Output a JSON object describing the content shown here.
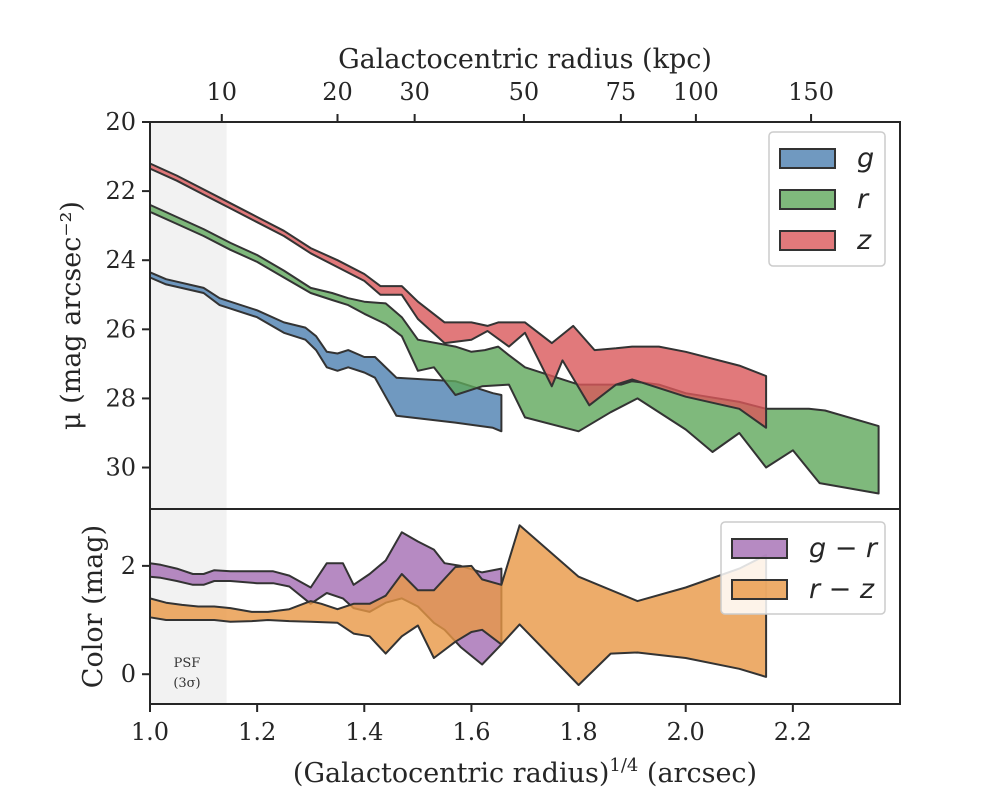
{
  "chart_data": [
    {
      "panel": "surface-brightness",
      "type": "area",
      "ylabel": "μ (mag arcsec⁻²)",
      "ylim": [
        31.2,
        20.0
      ],
      "y_inverted": true,
      "yticks": [
        20,
        22,
        24,
        26,
        28,
        30
      ],
      "top_xlabel": "Galactocentric radius (kpc)",
      "top_xticks": [
        {
          "label": "10",
          "x": 1.134
        },
        {
          "label": "20",
          "x": 1.35
        },
        {
          "label": "30",
          "x": 1.494
        },
        {
          "label": "50",
          "x": 1.698
        },
        {
          "label": "75",
          "x": 1.879
        },
        {
          "label": "100",
          "x": 2.019
        },
        {
          "label": "150",
          "x": 2.234
        }
      ],
      "psf_band": {
        "x0": 1.0,
        "x1": 1.143
      },
      "legend": {
        "location": "top-right",
        "entries": [
          "g",
          "r",
          "z"
        ]
      },
      "series": [
        {
          "name": "g",
          "color": "#4c7fb0",
          "upper": [
            [
              1.0,
              24.35
            ],
            [
              1.03,
              24.55
            ],
            [
              1.1,
              24.8
            ],
            [
              1.13,
              25.1
            ],
            [
              1.2,
              25.45
            ],
            [
              1.25,
              25.8
            ],
            [
              1.29,
              25.95
            ],
            [
              1.31,
              26.2
            ],
            [
              1.33,
              26.65
            ],
            [
              1.35,
              26.7
            ],
            [
              1.37,
              26.6
            ],
            [
              1.4,
              26.8
            ],
            [
              1.42,
              26.8
            ],
            [
              1.46,
              27.4
            ],
            [
              1.57,
              27.5
            ],
            [
              1.64,
              27.85
            ],
            [
              1.656,
              27.9
            ]
          ],
          "lower": [
            [
              1.0,
              24.5
            ],
            [
              1.03,
              24.7
            ],
            [
              1.1,
              24.95
            ],
            [
              1.13,
              25.3
            ],
            [
              1.2,
              25.65
            ],
            [
              1.25,
              26.1
            ],
            [
              1.29,
              26.3
            ],
            [
              1.31,
              26.6
            ],
            [
              1.33,
              27.1
            ],
            [
              1.35,
              27.2
            ],
            [
              1.37,
              27.1
            ],
            [
              1.4,
              27.25
            ],
            [
              1.42,
              27.4
            ],
            [
              1.46,
              28.5
            ],
            [
              1.57,
              28.7
            ],
            [
              1.64,
              28.85
            ],
            [
              1.656,
              28.95
            ]
          ]
        },
        {
          "name": "r",
          "color": "#5fa85b",
          "upper": [
            [
              1.0,
              22.4
            ],
            [
              1.05,
              22.75
            ],
            [
              1.1,
              23.1
            ],
            [
              1.15,
              23.5
            ],
            [
              1.2,
              23.85
            ],
            [
              1.25,
              24.3
            ],
            [
              1.3,
              24.8
            ],
            [
              1.34,
              24.95
            ],
            [
              1.37,
              25.1
            ],
            [
              1.4,
              25.2
            ],
            [
              1.44,
              25.25
            ],
            [
              1.47,
              25.65
            ],
            [
              1.5,
              26.3
            ],
            [
              1.57,
              26.5
            ],
            [
              1.6,
              26.65
            ],
            [
              1.625,
              26.6
            ],
            [
              1.65,
              26.5
            ],
            [
              1.67,
              26.75
            ],
            [
              1.7,
              27.1
            ],
            [
              1.8,
              27.6
            ],
            [
              1.88,
              27.6
            ],
            [
              1.9,
              27.5
            ],
            [
              1.95,
              27.6
            ],
            [
              2.0,
              27.85
            ],
            [
              2.1,
              28.1
            ],
            [
              2.15,
              28.3
            ],
            [
              2.23,
              28.3
            ],
            [
              2.26,
              28.35
            ],
            [
              2.36,
              28.8
            ]
          ],
          "lower": [
            [
              1.0,
              22.6
            ],
            [
              1.05,
              22.95
            ],
            [
              1.1,
              23.3
            ],
            [
              1.15,
              23.7
            ],
            [
              1.2,
              24.05
            ],
            [
              1.25,
              24.5
            ],
            [
              1.3,
              24.95
            ],
            [
              1.34,
              25.15
            ],
            [
              1.37,
              25.3
            ],
            [
              1.4,
              25.55
            ],
            [
              1.44,
              25.85
            ],
            [
              1.47,
              26.2
            ],
            [
              1.5,
              27.2
            ],
            [
              1.53,
              27.1
            ],
            [
              1.57,
              27.9
            ],
            [
              1.62,
              27.65
            ],
            [
              1.67,
              27.6
            ],
            [
              1.7,
              28.55
            ],
            [
              1.8,
              28.95
            ],
            [
              1.86,
              28.4
            ],
            [
              1.91,
              28.0
            ],
            [
              2.0,
              28.9
            ],
            [
              2.05,
              29.55
            ],
            [
              2.1,
              29.0
            ],
            [
              2.15,
              30.0
            ],
            [
              2.2,
              29.5
            ],
            [
              2.25,
              30.45
            ],
            [
              2.36,
              30.75
            ]
          ]
        },
        {
          "name": "z",
          "color": "#d9575a",
          "upper": [
            [
              1.0,
              21.2
            ],
            [
              1.05,
              21.55
            ],
            [
              1.1,
              21.95
            ],
            [
              1.15,
              22.35
            ],
            [
              1.2,
              22.75
            ],
            [
              1.25,
              23.15
            ],
            [
              1.3,
              23.65
            ],
            [
              1.35,
              24.0
            ],
            [
              1.4,
              24.4
            ],
            [
              1.43,
              24.75
            ],
            [
              1.47,
              24.75
            ],
            [
              1.5,
              25.2
            ],
            [
              1.55,
              25.8
            ],
            [
              1.6,
              25.8
            ],
            [
              1.63,
              25.9
            ],
            [
              1.65,
              25.8
            ],
            [
              1.7,
              25.8
            ],
            [
              1.75,
              26.4
            ],
            [
              1.79,
              25.9
            ],
            [
              1.83,
              26.6
            ],
            [
              1.87,
              26.55
            ],
            [
              1.9,
              26.5
            ],
            [
              1.95,
              26.5
            ],
            [
              2.0,
              26.65
            ],
            [
              2.1,
              27.05
            ],
            [
              2.15,
              27.35
            ]
          ],
          "lower": [
            [
              1.0,
              21.35
            ],
            [
              1.05,
              21.7
            ],
            [
              1.1,
              22.1
            ],
            [
              1.15,
              22.5
            ],
            [
              1.2,
              22.9
            ],
            [
              1.25,
              23.3
            ],
            [
              1.3,
              23.8
            ],
            [
              1.35,
              24.2
            ],
            [
              1.4,
              24.6
            ],
            [
              1.43,
              25.0
            ],
            [
              1.47,
              25.0
            ],
            [
              1.5,
              25.7
            ],
            [
              1.55,
              26.4
            ],
            [
              1.6,
              26.3
            ],
            [
              1.63,
              26.05
            ],
            [
              1.67,
              26.5
            ],
            [
              1.7,
              26.1
            ],
            [
              1.75,
              27.65
            ],
            [
              1.77,
              26.9
            ],
            [
              1.82,
              28.2
            ],
            [
              1.87,
              27.6
            ],
            [
              1.9,
              27.45
            ],
            [
              2.0,
              27.95
            ],
            [
              2.1,
              28.3
            ],
            [
              2.15,
              28.85
            ]
          ]
        }
      ]
    },
    {
      "panel": "color",
      "type": "area",
      "xlabel": "(Galactocentric radius)^1/4 (arcsec)",
      "ylabel": "Color (mag)",
      "xlim": [
        1.0,
        2.4
      ],
      "ylim": [
        -0.55,
        3.05
      ],
      "xticks": [
        1.0,
        1.2,
        1.4,
        1.6,
        1.8,
        2.0,
        2.2
      ],
      "yticks": [
        0,
        2
      ],
      "psf_band": {
        "x0": 1.0,
        "x1": 1.143
      },
      "legend": {
        "location": "top-right",
        "entries": [
          "g − r",
          "r − z"
        ]
      },
      "series": [
        {
          "name": "g − r",
          "color": "#a46db3",
          "upper": [
            [
              1.0,
              2.05
            ],
            [
              1.02,
              2.02
            ],
            [
              1.05,
              1.95
            ],
            [
              1.08,
              1.85
            ],
            [
              1.1,
              1.85
            ],
            [
              1.12,
              1.92
            ],
            [
              1.15,
              1.9
            ],
            [
              1.2,
              1.9
            ],
            [
              1.23,
              1.9
            ],
            [
              1.26,
              1.82
            ],
            [
              1.3,
              1.6
            ],
            [
              1.33,
              2.05
            ],
            [
              1.36,
              2.05
            ],
            [
              1.38,
              1.65
            ],
            [
              1.41,
              1.85
            ],
            [
              1.44,
              2.1
            ],
            [
              1.47,
              2.62
            ],
            [
              1.5,
              2.45
            ],
            [
              1.53,
              2.3
            ],
            [
              1.55,
              2.05
            ],
            [
              1.58,
              2.0
            ],
            [
              1.62,
              1.88
            ],
            [
              1.656,
              1.95
            ]
          ],
          "upper_note": "",
          "lower": [
            [
              1.0,
              1.8
            ],
            [
              1.02,
              1.78
            ],
            [
              1.05,
              1.72
            ],
            [
              1.08,
              1.65
            ],
            [
              1.1,
              1.65
            ],
            [
              1.12,
              1.72
            ],
            [
              1.15,
              1.72
            ],
            [
              1.2,
              1.68
            ],
            [
              1.23,
              1.68
            ],
            [
              1.26,
              1.62
            ],
            [
              1.3,
              1.3
            ],
            [
              1.33,
              1.5
            ],
            [
              1.36,
              1.4
            ],
            [
              1.38,
              1.22
            ],
            [
              1.41,
              1.15
            ],
            [
              1.44,
              1.32
            ],
            [
              1.47,
              1.4
            ],
            [
              1.5,
              1.25
            ],
            [
              1.53,
              0.95
            ],
            [
              1.55,
              0.82
            ],
            [
              1.58,
              0.5
            ],
            [
              1.62,
              0.18
            ],
            [
              1.656,
              0.55
            ]
          ]
        },
        {
          "name": "r − z",
          "color": "#e89745",
          "upper": [
            [
              1.0,
              1.4
            ],
            [
              1.03,
              1.32
            ],
            [
              1.06,
              1.28
            ],
            [
              1.09,
              1.25
            ],
            [
              1.12,
              1.25
            ],
            [
              1.15,
              1.22
            ],
            [
              1.19,
              1.15
            ],
            [
              1.22,
              1.15
            ],
            [
              1.26,
              1.2
            ],
            [
              1.3,
              1.35
            ],
            [
              1.32,
              1.3
            ],
            [
              1.35,
              1.2
            ],
            [
              1.38,
              1.3
            ],
            [
              1.41,
              1.3
            ],
            [
              1.44,
              1.45
            ],
            [
              1.47,
              1.85
            ],
            [
              1.5,
              1.55
            ],
            [
              1.53,
              1.55
            ],
            [
              1.57,
              1.98
            ],
            [
              1.6,
              2.0
            ],
            [
              1.62,
              1.75
            ],
            [
              1.656,
              1.65
            ],
            [
              1.69,
              2.75
            ],
            [
              1.8,
              1.8
            ],
            [
              1.91,
              1.35
            ],
            [
              2.0,
              1.6
            ],
            [
              2.1,
              1.95
            ],
            [
              2.15,
              2.2
            ]
          ],
          "lower": [
            [
              1.0,
              1.05
            ],
            [
              1.03,
              1.0
            ],
            [
              1.06,
              1.0
            ],
            [
              1.09,
              1.0
            ],
            [
              1.12,
              1.0
            ],
            [
              1.15,
              0.97
            ],
            [
              1.19,
              0.98
            ],
            [
              1.22,
              1.0
            ],
            [
              1.26,
              0.98
            ],
            [
              1.3,
              0.97
            ],
            [
              1.35,
              0.95
            ],
            [
              1.38,
              0.75
            ],
            [
              1.41,
              0.7
            ],
            [
              1.44,
              0.38
            ],
            [
              1.47,
              0.7
            ],
            [
              1.5,
              0.9
            ],
            [
              1.53,
              0.3
            ],
            [
              1.57,
              0.6
            ],
            [
              1.6,
              0.78
            ],
            [
              1.62,
              0.82
            ],
            [
              1.656,
              0.55
            ],
            [
              1.69,
              0.92
            ],
            [
              1.8,
              -0.2
            ],
            [
              1.86,
              0.38
            ],
            [
              1.91,
              0.4
            ],
            [
              2.0,
              0.3
            ],
            [
              2.1,
              0.1
            ],
            [
              2.15,
              -0.05
            ]
          ]
        }
      ],
      "annotation": {
        "line1": "PSF",
        "line2": "(3σ)"
      }
    }
  ]
}
